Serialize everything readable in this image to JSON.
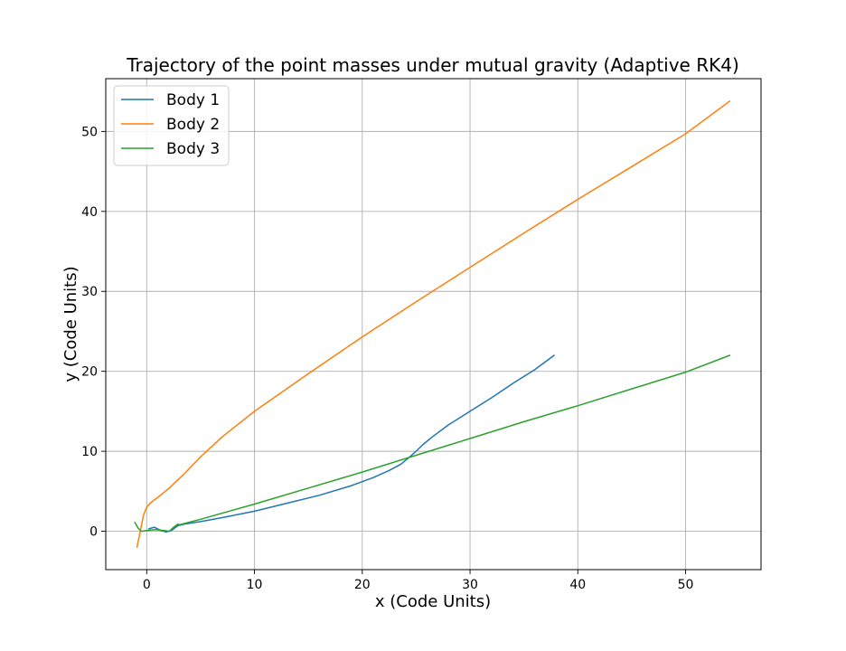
{
  "chart_data": {
    "type": "line",
    "title": "Trajectory of the point masses under mutual gravity (Adaptive RK4)",
    "xlabel": "x (Code Units)",
    "ylabel": "y (Code Units)",
    "xlim": [
      -3.8,
      57.0
    ],
    "ylim": [
      -4.8,
      56.6
    ],
    "xticks": [
      0,
      10,
      20,
      30,
      40,
      50
    ],
    "yticks": [
      0,
      10,
      20,
      30,
      40,
      50
    ],
    "grid": true,
    "legend_position": "top-left",
    "series": [
      {
        "name": "Body 1",
        "color": "#1f77b4",
        "x": [
          0.2,
          0.7,
          1.3,
          1.8,
          2.3,
          2.6,
          2.9,
          3.5,
          5,
          7,
          10,
          13,
          16,
          19,
          21,
          22.5,
          23.6,
          24.4,
          25,
          25.6,
          26.5,
          28,
          30,
          32,
          34,
          36,
          37.8
        ],
        "y": [
          0.3,
          0.5,
          0.1,
          -0.1,
          0.1,
          0.4,
          0.7,
          0.9,
          1.2,
          1.7,
          2.5,
          3.5,
          4.5,
          5.7,
          6.7,
          7.6,
          8.4,
          9.3,
          10.0,
          10.8,
          11.8,
          13.3,
          15.0,
          16.7,
          18.5,
          20.2,
          22.0
        ]
      },
      {
        "name": "Body 2",
        "color": "#ff7f0e",
        "x": [
          -0.9,
          -0.6,
          -0.3,
          0,
          0.3,
          1,
          2,
          3.5,
          5,
          7,
          10,
          15,
          20,
          25,
          30,
          35,
          40,
          45,
          50,
          54.1
        ],
        "y": [
          -2.0,
          0.0,
          2.0,
          3.0,
          3.5,
          4.2,
          5.3,
          7.2,
          9.3,
          11.8,
          15.0,
          19.7,
          24.3,
          28.7,
          33.0,
          37.3,
          41.5,
          45.6,
          49.7,
          53.8
        ]
      },
      {
        "name": "Body 3",
        "color": "#2ca02c",
        "x": [
          -1.1,
          -0.8,
          -0.5,
          0,
          0.8,
          1.6,
          2.1,
          2.5,
          2.9,
          3,
          5,
          10,
          15,
          20,
          25,
          30,
          35,
          40,
          45,
          50,
          54.1
        ],
        "y": [
          1.1,
          0.4,
          0.0,
          0.1,
          0.2,
          0.1,
          0.0,
          0.5,
          0.9,
          0.8,
          1.5,
          3.4,
          5.4,
          7.4,
          9.5,
          11.6,
          13.7,
          15.7,
          17.8,
          19.9,
          22.0
        ]
      }
    ]
  }
}
